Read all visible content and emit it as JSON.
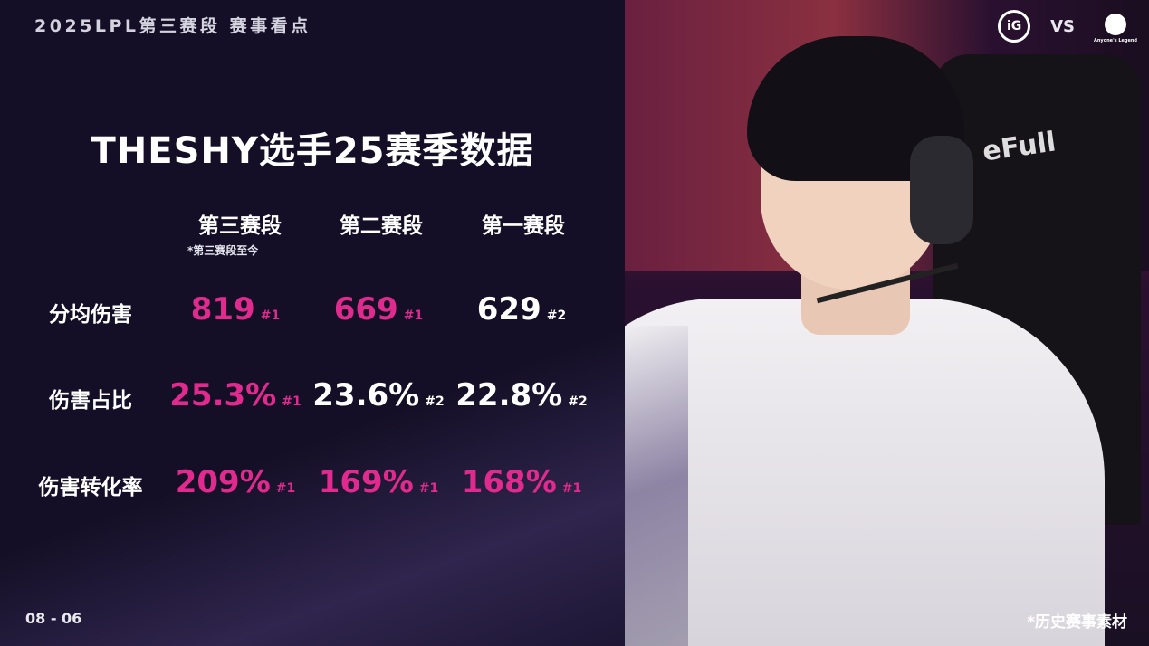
{
  "header": {
    "title": "2025LPL第三赛段 赛事看点",
    "team_left": "iG",
    "vs": "VS",
    "team_right": "Anyone's Legend"
  },
  "main": {
    "title": "THESHY选手25赛季数据",
    "columns": [
      "第三赛段",
      "第二赛段",
      "第一赛段"
    ],
    "column_note": "*第三赛段至今",
    "rows": [
      {
        "label": "分均伤害",
        "cells": [
          {
            "value": "819",
            "rank": "#1",
            "highlight": true
          },
          {
            "value": "669",
            "rank": "#1",
            "highlight": true
          },
          {
            "value": "629",
            "rank": "#2",
            "highlight": false
          }
        ]
      },
      {
        "label": "伤害占比",
        "cells": [
          {
            "value": "25.3%",
            "rank": "#1",
            "highlight": true
          },
          {
            "value": "23.6%",
            "rank": "#2",
            "highlight": false
          },
          {
            "value": "22.8%",
            "rank": "#2",
            "highlight": false
          }
        ]
      },
      {
        "label": "伤害转化率",
        "cells": [
          {
            "value": "209%",
            "rank": "#1",
            "highlight": true
          },
          {
            "value": "169%",
            "rank": "#1",
            "highlight": true
          },
          {
            "value": "168%",
            "rank": "#1",
            "highlight": true
          }
        ]
      }
    ]
  },
  "photo": {
    "chair_text": "eFull"
  },
  "footer": {
    "date": "08 - 06",
    "note": "*历史赛事素材"
  },
  "colors": {
    "highlight": "#e02a8e",
    "background": "#140f26"
  }
}
